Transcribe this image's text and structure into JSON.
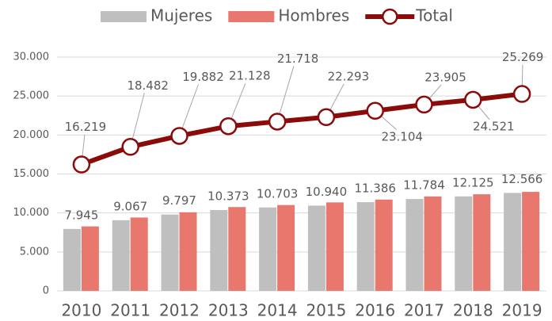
{
  "chart_data": {
    "type": "bar-line",
    "categories": [
      "2010",
      "2011",
      "2012",
      "2013",
      "2014",
      "2015",
      "2016",
      "2017",
      "2018",
      "2019"
    ],
    "series": [
      {
        "name": "Mujeres",
        "color": "#bfbfbf",
        "type": "bar",
        "values": [
          7945,
          9067,
          9797,
          10373,
          10703,
          10940,
          11386,
          11784,
          12125,
          12566
        ],
        "value_labels": [
          "7.945",
          "9.067",
          "9.797",
          "10.373",
          "10.703",
          "10.940",
          "11.386",
          "11.784",
          "12.125",
          "12.566"
        ]
      },
      {
        "name": "Hombres",
        "color": "#e8776e",
        "type": "bar",
        "values": [
          8274,
          9415,
          10085,
          10755,
          11015,
          11353,
          11718,
          12121,
          12396,
          12703
        ]
      },
      {
        "name": "Total",
        "color": "#8b0a0a",
        "type": "line",
        "values": [
          16219,
          18482,
          19882,
          21128,
          21718,
          22293,
          23104,
          23905,
          24521,
          25269
        ],
        "value_labels": [
          "16.219",
          "18.482",
          "19.882",
          "21.128",
          "21.718",
          "22.293",
          "23.104",
          "23.905",
          "24.521",
          "25.269"
        ]
      }
    ],
    "ylim": [
      0,
      30000
    ],
    "yticks": [
      0,
      {
        "value": 5000,
        "label": "5.000"
      },
      {
        "value": 10000,
        "label": "10.000"
      },
      {
        "value": 15000,
        "label": "15.000"
      },
      {
        "value": 20000,
        "label": "20.000"
      },
      {
        "value": 25000,
        "label": "25.000"
      },
      {
        "value": 30000,
        "label": "30.000"
      }
    ],
    "grid": true,
    "legend": "top"
  }
}
